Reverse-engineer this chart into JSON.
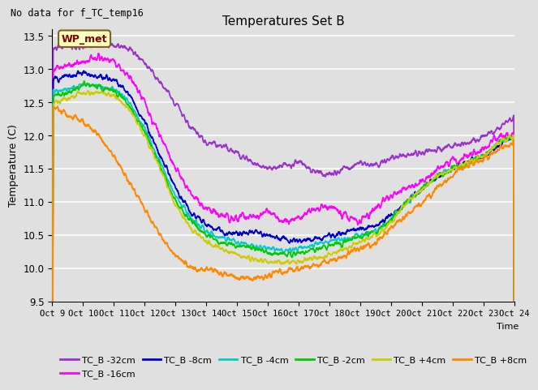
{
  "title": "Temperatures Set B",
  "subtitle": "No data for f_TC_temp16",
  "ylabel": "Temperature (C)",
  "xlabel": "Time",
  "ylim": [
    9.5,
    13.6
  ],
  "bg_color": "#e0e0e0",
  "wp_met_label": "WP_met",
  "legend_entries": [
    {
      "label": "TC_B -32cm",
      "color": "#9933cc"
    },
    {
      "label": "TC_B -16cm",
      "color": "#ff00ff"
    },
    {
      "label": "TC_B -8cm",
      "color": "#0000cc"
    },
    {
      "label": "TC_B -4cm",
      "color": "#00cccc"
    },
    {
      "label": "TC_B -2cm",
      "color": "#00cc00"
    },
    {
      "label": "TC_B +4cm",
      "color": "#cccc00"
    },
    {
      "label": "TC_B +8cm",
      "color": "#ff8800"
    }
  ],
  "x_tick_labels": [
    "Oct 9",
    "Oct 10",
    "Oct 11",
    "Oct 12",
    "Oct 13",
    "Oct 14",
    "Oct 15",
    "Oct 16",
    "Oct 17",
    "Oct 18",
    "Oct 19",
    "Oct 20",
    "Oct 21",
    "Oct 22",
    "Oct 23",
    "Oct 24"
  ],
  "n_points": 2000
}
